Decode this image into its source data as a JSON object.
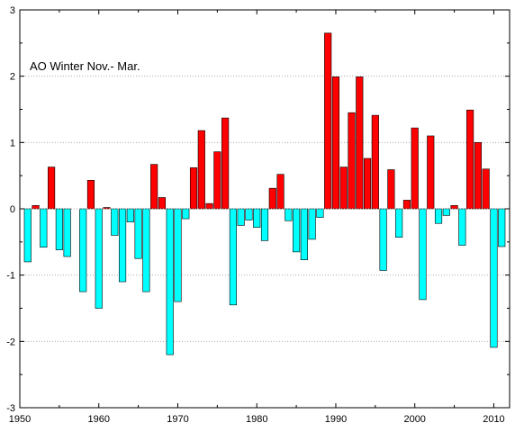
{
  "chart_data": {
    "type": "bar",
    "title": "AO Winter Nov.- Mar.",
    "xlabel": "",
    "ylabel": "",
    "xlim": [
      1950,
      2012
    ],
    "ylim": [
      -3,
      3
    ],
    "x_ticks": [
      1950,
      1960,
      1970,
      1980,
      1990,
      2000,
      2010
    ],
    "x_tick_labels": [
      "1950",
      "1960",
      "1970",
      "1980",
      "1990",
      "2000",
      "2010"
    ],
    "y_ticks": [
      -3,
      -2,
      -1,
      0,
      1,
      2,
      3
    ],
    "y_tick_labels": [
      "-3",
      "-2",
      "-1",
      "0",
      "1",
      "2",
      "3"
    ],
    "grid": "horizontal dotted",
    "legend": "none",
    "colors": {
      "positive": "#ff0000",
      "negative": "#00ffff",
      "outline": "#000000",
      "grid": "#aaaaaa"
    },
    "x": [
      1951,
      1952,
      1953,
      1954,
      1955,
      1956,
      1957,
      1958,
      1959,
      1960,
      1961,
      1962,
      1963,
      1964,
      1965,
      1966,
      1967,
      1968,
      1969,
      1970,
      1971,
      1972,
      1973,
      1974,
      1975,
      1976,
      1977,
      1978,
      1979,
      1980,
      1981,
      1982,
      1983,
      1984,
      1985,
      1986,
      1987,
      1988,
      1989,
      1990,
      1991,
      1992,
      1993,
      1994,
      1995,
      1996,
      1997,
      1998,
      1999,
      2000,
      2001,
      2002,
      2003,
      2004,
      2005,
      2006,
      2007,
      2008,
      2009,
      2010,
      2011
    ],
    "values": [
      -0.8,
      0.05,
      -0.58,
      0.63,
      -0.62,
      -0.72,
      0,
      -1.25,
      0.43,
      -1.5,
      0.02,
      -0.4,
      -1.1,
      -0.2,
      -0.75,
      -1.25,
      0.67,
      0.17,
      -2.2,
      -1.4,
      -0.15,
      0.62,
      1.18,
      0.08,
      0.86,
      1.37,
      -1.45,
      -0.25,
      -0.17,
      -0.28,
      -0.48,
      0.31,
      0.52,
      -0.18,
      -0.65,
      -0.77,
      -0.46,
      -0.13,
      2.65,
      1.99,
      0.63,
      1.45,
      1.99,
      0.76,
      1.41,
      -0.93,
      0.59,
      -0.43,
      0.13,
      1.22,
      -1.37,
      1.1,
      -0.22,
      -0.1,
      0.05,
      -0.55,
      1.49,
      1.0,
      0.6,
      -2.09,
      -0.57
    ]
  }
}
